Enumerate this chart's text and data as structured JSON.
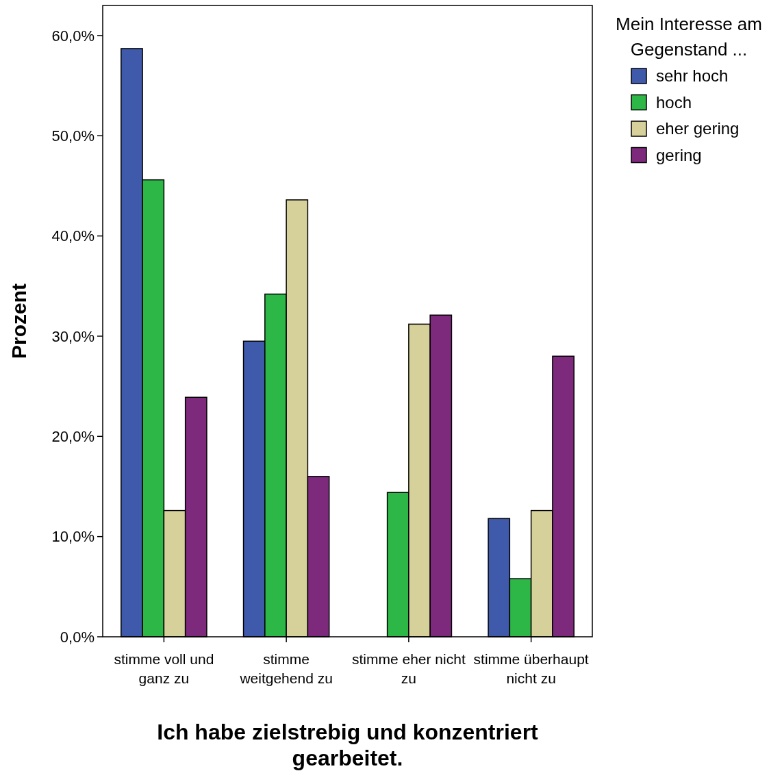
{
  "chart_data": {
    "type": "bar",
    "xlabel": "Ich habe zielstrebig und konzentriert gearbeitet.",
    "ylabel": "Prozent",
    "legend_title": "Mein Interesse am Gegenstand ...",
    "categories": [
      "stimme voll und ganz zu",
      "stimme weitgehend zu",
      "stimme eher nicht zu",
      "stimme überhaupt nicht zu"
    ],
    "series": [
      {
        "name": "sehr hoch",
        "color": "#3f5aab",
        "values": [
          58.7,
          29.5,
          null,
          11.8
        ]
      },
      {
        "name": "hoch",
        "color": "#2db746",
        "values": [
          45.6,
          34.2,
          14.4,
          5.8
        ]
      },
      {
        "name": "eher gering",
        "color": "#d6d09a",
        "values": [
          12.6,
          43.6,
          31.2,
          12.6
        ]
      },
      {
        "name": "gering",
        "color": "#7d2a7d",
        "values": [
          23.9,
          16.0,
          32.1,
          28.0
        ]
      }
    ],
    "ylim": [
      0,
      63
    ],
    "yticks": [
      {
        "value": 0,
        "label": "0,0%"
      },
      {
        "value": 10,
        "label": "10,0%"
      },
      {
        "value": 20,
        "label": "20,0%"
      },
      {
        "value": 30,
        "label": "30,0%"
      },
      {
        "value": 40,
        "label": "40,0%"
      },
      {
        "value": 50,
        "label": "50,0%"
      },
      {
        "value": 60,
        "label": "60,0%"
      }
    ],
    "grid": false,
    "legend": "top right"
  }
}
